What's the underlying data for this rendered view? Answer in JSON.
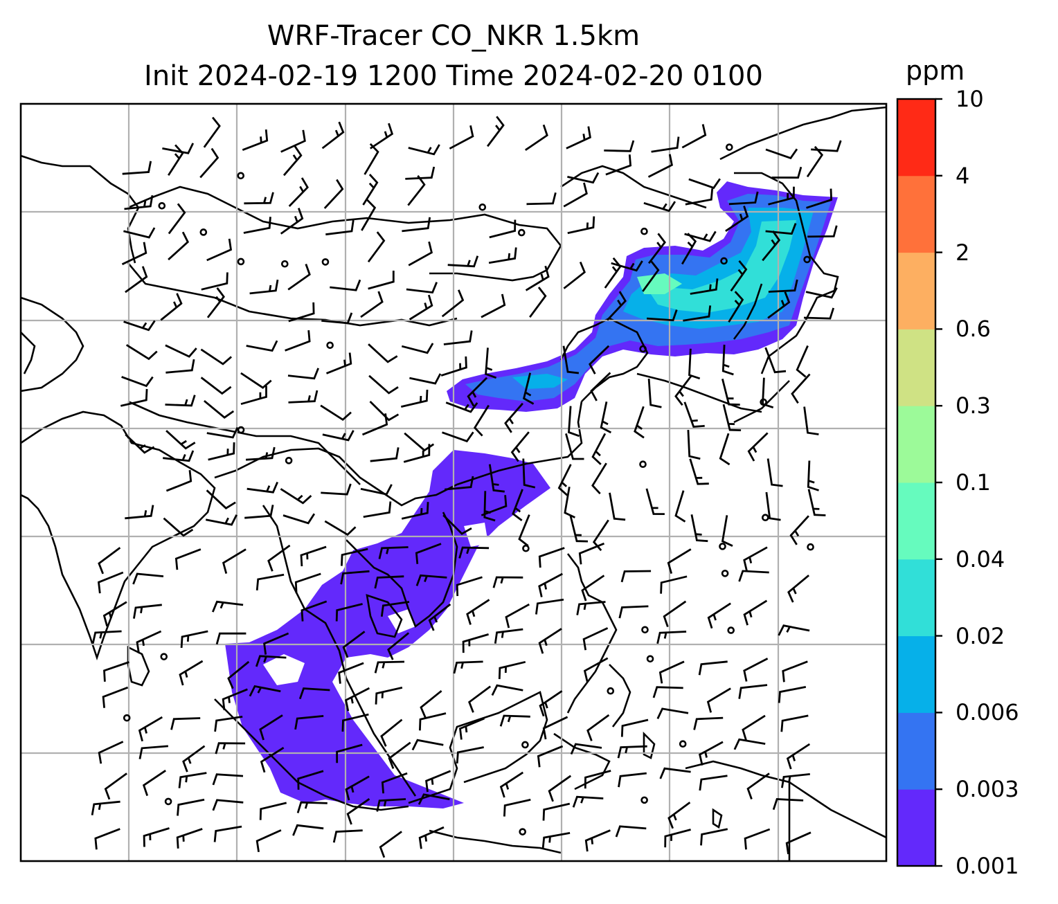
{
  "title_line1": "WRF-Tracer CO_NKR 1.5km",
  "title_line2": "Init 2024-02-19 1200 Time 2024-02-20 0100",
  "colorbar": {
    "units": "ppm",
    "levels": [
      "0.001",
      "0.003",
      "0.006",
      "0.02",
      "0.04",
      "0.1",
      "0.3",
      "0.6",
      "2",
      "4",
      "10"
    ],
    "colors": [
      "#6329fb",
      "#3474f2",
      "#06b0e9",
      "#31dfd8",
      "#66fbbe",
      "#9cfa99",
      "#cfe284",
      "#fdaf61",
      "#ff713a",
      "#ff2a16"
    ]
  },
  "map": {
    "gridline_color": "#b0b0b0",
    "coastline_color": "#000000",
    "plume_color_low": "#6329fb",
    "plume_color_mid": "#3474f2",
    "plume_color_high": "#31dfd8"
  }
}
